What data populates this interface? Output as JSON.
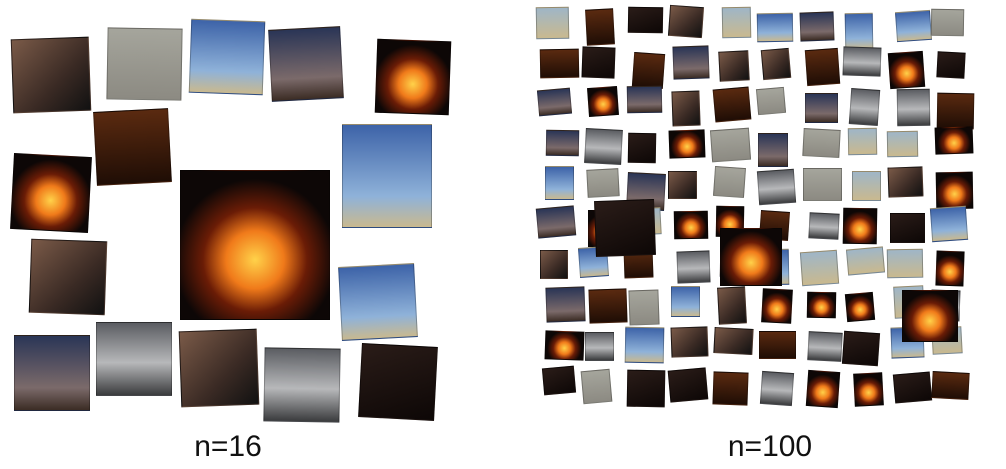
{
  "captions": {
    "left": "n=16",
    "right": "n=100"
  },
  "colors": {
    "night": "#0d0706",
    "fire_orange": "#f07a1a",
    "fire_yellow": "#ffd24a",
    "sky_blue": "#3d63a8",
    "dusk_blue": "#2a3556",
    "desert": "#c9b98f",
    "dust": "#8c8a82",
    "car_silver": "#b7b8ba",
    "indoor_brown": "#5a2a10"
  }
}
